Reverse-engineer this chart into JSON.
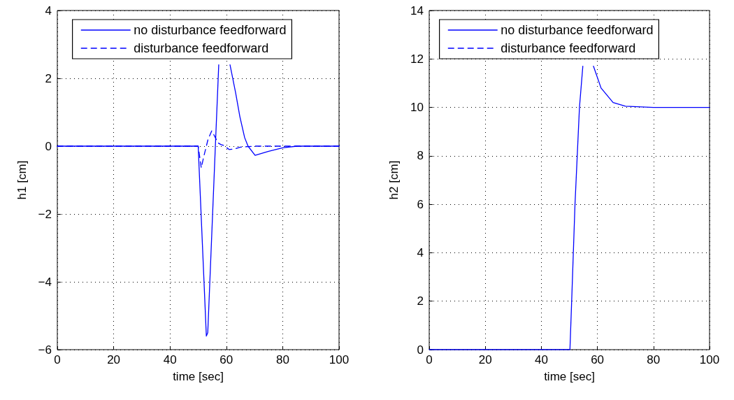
{
  "chart_data": [
    {
      "type": "line",
      "xlabel": "time [sec]",
      "ylabel": "h1 [cm]",
      "xlim": [
        0,
        100
      ],
      "xticks": [
        0,
        20,
        40,
        60,
        80,
        100
      ],
      "ylim": [
        -6,
        4
      ],
      "yticks": [
        -6,
        -4,
        -2,
        0,
        2,
        4
      ],
      "grid": true,
      "legend": "top",
      "marker": "none",
      "series": [
        {
          "name": "no disturbance feedforward",
          "color": "#0000ff",
          "line_style": "solid",
          "x": [
            0,
            50,
            50.1,
            52.9,
            53.4,
            56.1,
            57.3,
            59,
            61.3,
            63.3,
            64.8,
            66.5,
            67.7,
            70.2,
            75,
            80,
            85,
            100
          ],
          "values": [
            0,
            0,
            0,
            -5.6,
            -5.5,
            0,
            2.4,
            null,
            2.4,
            1.57,
            0.87,
            0.25,
            0,
            -0.27,
            -0.15,
            -0.05,
            0,
            0
          ]
        },
        {
          "name": "disturbance feedforward",
          "color": "#0000ff",
          "line_style": "dashed",
          "x": [
            0,
            50,
            51.1,
            52,
            53.5,
            54.8,
            55.5,
            57,
            58,
            59.1,
            61,
            63,
            65,
            70,
            100
          ],
          "values": [
            0,
            0,
            -0.64,
            -0.3,
            0.2,
            0.45,
            0.35,
            0.1,
            0.05,
            0.02,
            -0.1,
            -0.08,
            -0.03,
            0,
            0
          ]
        }
      ]
    },
    {
      "type": "line",
      "xlabel": "time [sec]",
      "ylabel": "h2 [cm]",
      "xlim": [
        0,
        100
      ],
      "xticks": [
        0,
        20,
        40,
        60,
        80,
        100
      ],
      "ylim": [
        0,
        14
      ],
      "yticks": [
        0,
        2,
        4,
        6,
        8,
        10,
        12,
        14
      ],
      "grid": true,
      "legend": "top",
      "marker": "none",
      "series": [
        {
          "name": "no disturbance feedforward",
          "color": "#0000ff",
          "line_style": "solid",
          "x": [
            0,
            50,
            50.2,
            50.8,
            52,
            53.6,
            54.8,
            56.5,
            58.6,
            61.3,
            65.6,
            70,
            80,
            100
          ],
          "values": [
            0,
            0,
            0,
            1.94,
            5.98,
            10,
            11.7,
            null,
            11.7,
            10.8,
            10.2,
            10.05,
            10,
            10
          ]
        },
        {
          "name": "disturbance feedforward",
          "color": "#0000ff",
          "line_style": "dashed"
        }
      ]
    }
  ]
}
